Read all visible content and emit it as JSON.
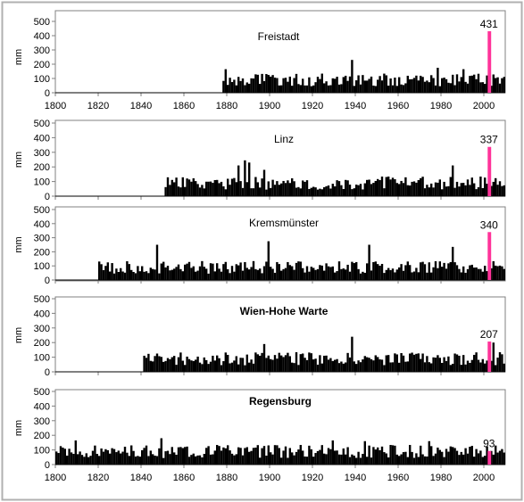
{
  "colors": {
    "bars": "#000000",
    "highlight": "#ff3399",
    "frame": "#b0b0b0",
    "axis": "#808080"
  },
  "chart_data": [
    {
      "type": "bar",
      "title": "Freistadt",
      "ylabel": "mm",
      "ylim": [
        0,
        500
      ],
      "yticks": [
        "0",
        "100",
        "200",
        "300",
        "400",
        "500"
      ],
      "xlim": [
        1800,
        2010
      ],
      "xticks": [
        "1800",
        "1820",
        "1840",
        "1860",
        "1880",
        "1900",
        "1920",
        "1940",
        "1960",
        "1980",
        "2000"
      ],
      "data_start": 1878,
      "noise_seed": 1,
      "peaks": [
        [
          1879,
          165
        ],
        [
          1938,
          230
        ],
        [
          1978,
          175
        ],
        [
          1990,
          165
        ]
      ],
      "highlight": {
        "year": 2002,
        "value": 431,
        "label": "431"
      }
    },
    {
      "type": "bar",
      "title": "Linz",
      "ylabel": "mm",
      "ylim": [
        0,
        500
      ],
      "yticks": [
        "0",
        "100",
        "200",
        "300",
        "400",
        "500"
      ],
      "xlim": [
        1800,
        2010
      ],
      "xticks": [
        "1800",
        "1820",
        "1840",
        "1860",
        "1880",
        "1900",
        "1920",
        "1940",
        "1960",
        "1980",
        "2000"
      ],
      "data_start": 1851,
      "noise_seed": 2,
      "peaks": [
        [
          1885,
          210
        ],
        [
          1888,
          245
        ],
        [
          1890,
          230
        ],
        [
          1897,
          180
        ],
        [
          1985,
          210
        ]
      ],
      "highlight": {
        "year": 2002,
        "value": 337,
        "label": "337"
      }
    },
    {
      "type": "bar",
      "title": "Kremsmünster",
      "ylabel": "mm",
      "ylim": [
        0,
        500
      ],
      "yticks": [
        "0",
        "100",
        "200",
        "300",
        "400",
        "500"
      ],
      "xlim": [
        1800,
        2010
      ],
      "xticks": [
        "1800",
        "1820",
        "1840",
        "1860",
        "1880",
        "1900",
        "1920",
        "1940",
        "1960",
        "1980",
        "2000"
      ],
      "data_start": 1820,
      "noise_seed": 3,
      "peaks": [
        [
          1847,
          250
        ],
        [
          1899,
          275
        ],
        [
          1946,
          250
        ],
        [
          1985,
          235
        ]
      ],
      "highlight": {
        "year": 2002,
        "value": 340,
        "label": "340"
      }
    },
    {
      "type": "bar",
      "title": "Wien-Hohe Warte",
      "ylabel": "mm",
      "ylim": [
        0,
        500
      ],
      "yticks": [
        "0",
        "100",
        "200",
        "300",
        "400",
        "500"
      ],
      "xlim": [
        1800,
        2010
      ],
      "xticks": [
        "1800",
        "1820",
        "1840",
        "1860",
        "1880",
        "1900",
        "1920",
        "1940",
        "1960",
        "1980",
        "2000"
      ],
      "data_start": 1841,
      "noise_seed": 4,
      "peaks": [
        [
          1897,
          190
        ],
        [
          1938,
          240
        ],
        [
          2004,
          200
        ]
      ],
      "highlight": {
        "year": 2002,
        "value": 207,
        "label": "207"
      }
    },
    {
      "type": "bar",
      "title": "Regensburg",
      "ylabel": "mm",
      "ylim": [
        0,
        500
      ],
      "yticks": [
        "0",
        "100",
        "200",
        "300",
        "400",
        "500"
      ],
      "xlim": [
        1800,
        2010
      ],
      "xticks": [
        "1800",
        "1820",
        "1840",
        "1860",
        "1880",
        "1900",
        "1920",
        "1940",
        "1960",
        "1980",
        "2000"
      ],
      "data_start": 1800,
      "noise_seed": 5,
      "peaks": [
        [
          1809,
          165
        ],
        [
          1849,
          180
        ],
        [
          1929,
          165
        ],
        [
          1944,
          160
        ],
        [
          1974,
          160
        ]
      ],
      "highlight": {
        "year": 2002,
        "value": 93,
        "label": "93"
      }
    }
  ]
}
